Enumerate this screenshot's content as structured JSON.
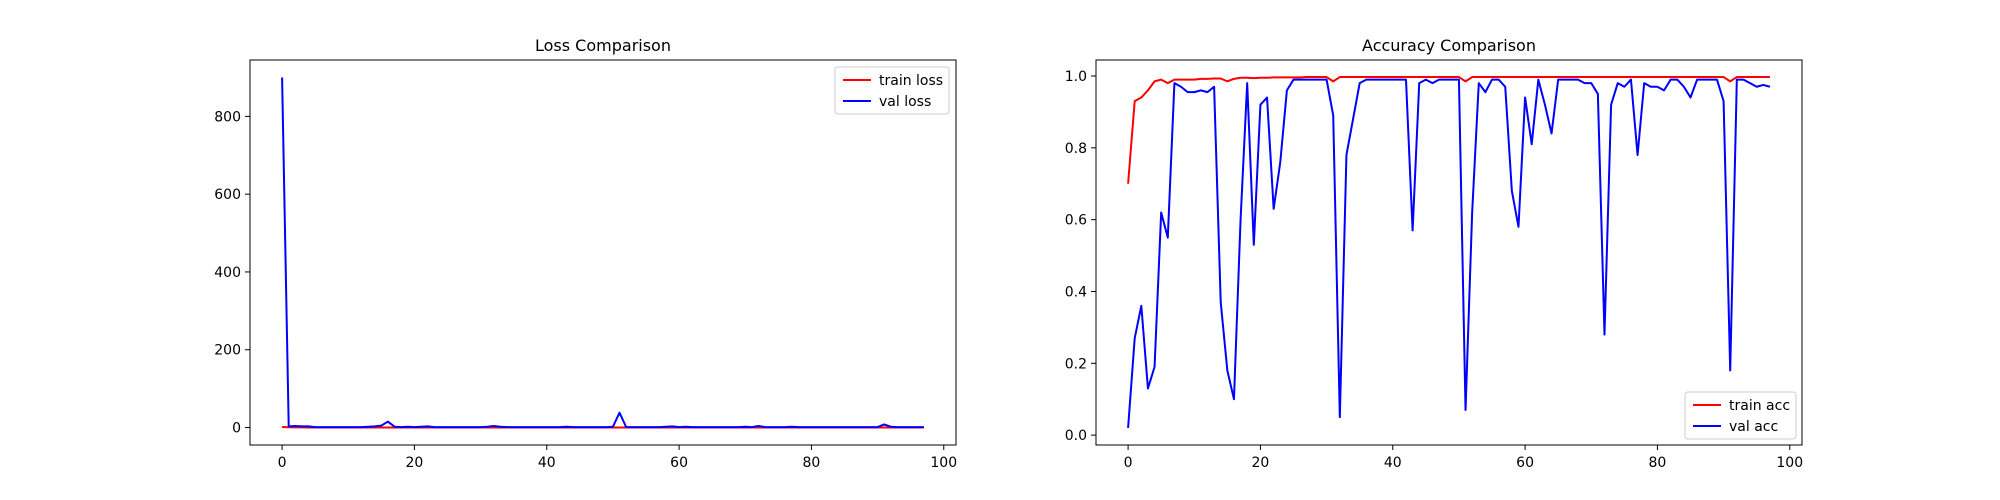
{
  "chart_data": [
    {
      "type": "line",
      "title": "Loss Comparison",
      "xlabel": "",
      "ylabel": "",
      "xlim": [
        -4.85,
        101.85
      ],
      "ylim": [
        -45,
        945
      ],
      "xticks": [
        0,
        20,
        40,
        60,
        80,
        100
      ],
      "yticks": [
        0,
        200,
        400,
        600,
        800
      ],
      "grid": false,
      "legend": "upper right",
      "series": [
        {
          "name": "train loss",
          "color": "#ff0000",
          "values": [
            1.2,
            0.5,
            0.3,
            0.2,
            0.15,
            0.1,
            0.1,
            0.1,
            0.08,
            0.08,
            0.07,
            0.07,
            0.06,
            0.06,
            0.06,
            0.05,
            0.05,
            0.05,
            0.05,
            0.05,
            0.04,
            0.04,
            0.04,
            0.04,
            0.04,
            0.04,
            0.04,
            0.04,
            0.04,
            0.04,
            0.03,
            0.03,
            0.03,
            0.03,
            0.03,
            0.03,
            0.03,
            0.03,
            0.03,
            0.03,
            0.03,
            0.03,
            0.03,
            0.03,
            0.03,
            0.03,
            0.03,
            0.03,
            0.03,
            0.03,
            0.03,
            0.03,
            0.03,
            0.03,
            0.03,
            0.03,
            0.03,
            0.03,
            0.03,
            0.03,
            0.03,
            0.03,
            0.03,
            0.03,
            0.03,
            0.03,
            0.03,
            0.03,
            0.03,
            0.03,
            0.03,
            0.03,
            0.03,
            0.03,
            0.03,
            0.03,
            0.03,
            0.03,
            0.03,
            0.03,
            0.03,
            0.03,
            0.03,
            0.03,
            0.03,
            0.03,
            0.03,
            0.03,
            0.03,
            0.03,
            0.03,
            0.03,
            0.03,
            0.03,
            0.03,
            0.03,
            0.03,
            0.03
          ]
        },
        {
          "name": "val loss",
          "color": "#0000ff",
          "values": [
            900,
            3,
            4,
            3,
            3,
            1,
            1,
            1,
            1,
            1,
            1,
            1,
            1,
            2,
            3,
            5,
            15,
            2,
            1,
            2,
            1,
            2,
            3,
            1,
            1,
            1,
            1,
            1,
            1,
            1,
            1,
            2,
            4,
            2,
            1,
            1,
            1,
            1,
            1,
            1,
            1,
            1,
            1,
            2,
            1,
            1,
            1,
            1,
            1,
            1,
            2,
            38,
            1,
            1,
            1,
            1,
            1,
            1,
            2,
            3,
            1,
            2,
            1,
            1,
            1,
            1,
            1,
            1,
            1,
            1,
            2,
            1,
            4,
            1,
            1,
            1,
            1,
            2,
            1,
            1,
            1,
            1,
            1,
            1,
            1,
            1,
            1,
            1,
            1,
            1,
            1,
            8,
            2,
            1,
            1,
            1,
            1,
            1
          ]
        }
      ]
    },
    {
      "type": "line",
      "title": "Accuracy Comparison",
      "xlabel": "",
      "ylabel": "",
      "xlim": [
        -4.85,
        101.85
      ],
      "ylim": [
        -0.0275,
        1.0445
      ],
      "xticks": [
        0,
        20,
        40,
        60,
        80,
        100
      ],
      "yticks": [
        0.0,
        0.2,
        0.4,
        0.6,
        0.8,
        1.0
      ],
      "grid": false,
      "legend": "lower right",
      "series": [
        {
          "name": "train acc",
          "color": "#ff0000",
          "values": [
            0.7,
            0.93,
            0.94,
            0.96,
            0.985,
            0.99,
            0.98,
            0.99,
            0.99,
            0.99,
            0.99,
            0.992,
            0.992,
            0.993,
            0.993,
            0.985,
            0.992,
            0.995,
            0.995,
            0.994,
            0.995,
            0.995,
            0.996,
            0.996,
            0.996,
            0.996,
            0.996,
            0.997,
            0.997,
            0.997,
            0.997,
            0.985,
            0.997,
            0.997,
            0.997,
            0.997,
            0.997,
            0.997,
            0.997,
            0.997,
            0.997,
            0.997,
            0.997,
            0.997,
            0.997,
            0.997,
            0.997,
            0.997,
            0.997,
            0.997,
            0.997,
            0.985,
            0.997,
            0.997,
            0.997,
            0.997,
            0.997,
            0.997,
            0.997,
            0.997,
            0.997,
            0.997,
            0.997,
            0.997,
            0.997,
            0.997,
            0.997,
            0.997,
            0.997,
            0.997,
            0.997,
            0.997,
            0.997,
            0.997,
            0.997,
            0.997,
            0.997,
            0.997,
            0.997,
            0.997,
            0.997,
            0.997,
            0.997,
            0.997,
            0.997,
            0.997,
            0.997,
            0.997,
            0.997,
            0.997,
            0.997,
            0.985,
            0.997,
            0.997,
            0.997,
            0.997,
            0.997,
            0.997
          ]
        },
        {
          "name": "val acc",
          "color": "#0000ff",
          "values": [
            0.02,
            0.27,
            0.36,
            0.13,
            0.19,
            0.62,
            0.55,
            0.98,
            0.97,
            0.955,
            0.955,
            0.96,
            0.955,
            0.97,
            0.37,
            0.18,
            0.1,
            0.6,
            0.98,
            0.53,
            0.92,
            0.94,
            0.63,
            0.76,
            0.96,
            0.99,
            0.99,
            0.99,
            0.99,
            0.99,
            0.99,
            0.89,
            0.05,
            0.78,
            0.88,
            0.98,
            0.99,
            0.99,
            0.99,
            0.99,
            0.99,
            0.99,
            0.99,
            0.57,
            0.98,
            0.99,
            0.98,
            0.99,
            0.99,
            0.99,
            0.99,
            0.07,
            0.62,
            0.98,
            0.955,
            0.99,
            0.99,
            0.97,
            0.68,
            0.58,
            0.94,
            0.81,
            0.99,
            0.92,
            0.84,
            0.99,
            0.99,
            0.99,
            0.99,
            0.98,
            0.98,
            0.95,
            0.28,
            0.92,
            0.98,
            0.97,
            0.99,
            0.78,
            0.98,
            0.97,
            0.97,
            0.96,
            0.99,
            0.99,
            0.97,
            0.94,
            0.99,
            0.99,
            0.99,
            0.99,
            0.93,
            0.18,
            0.99,
            0.99,
            0.98,
            0.97,
            0.975,
            0.97
          ]
        }
      ]
    }
  ]
}
